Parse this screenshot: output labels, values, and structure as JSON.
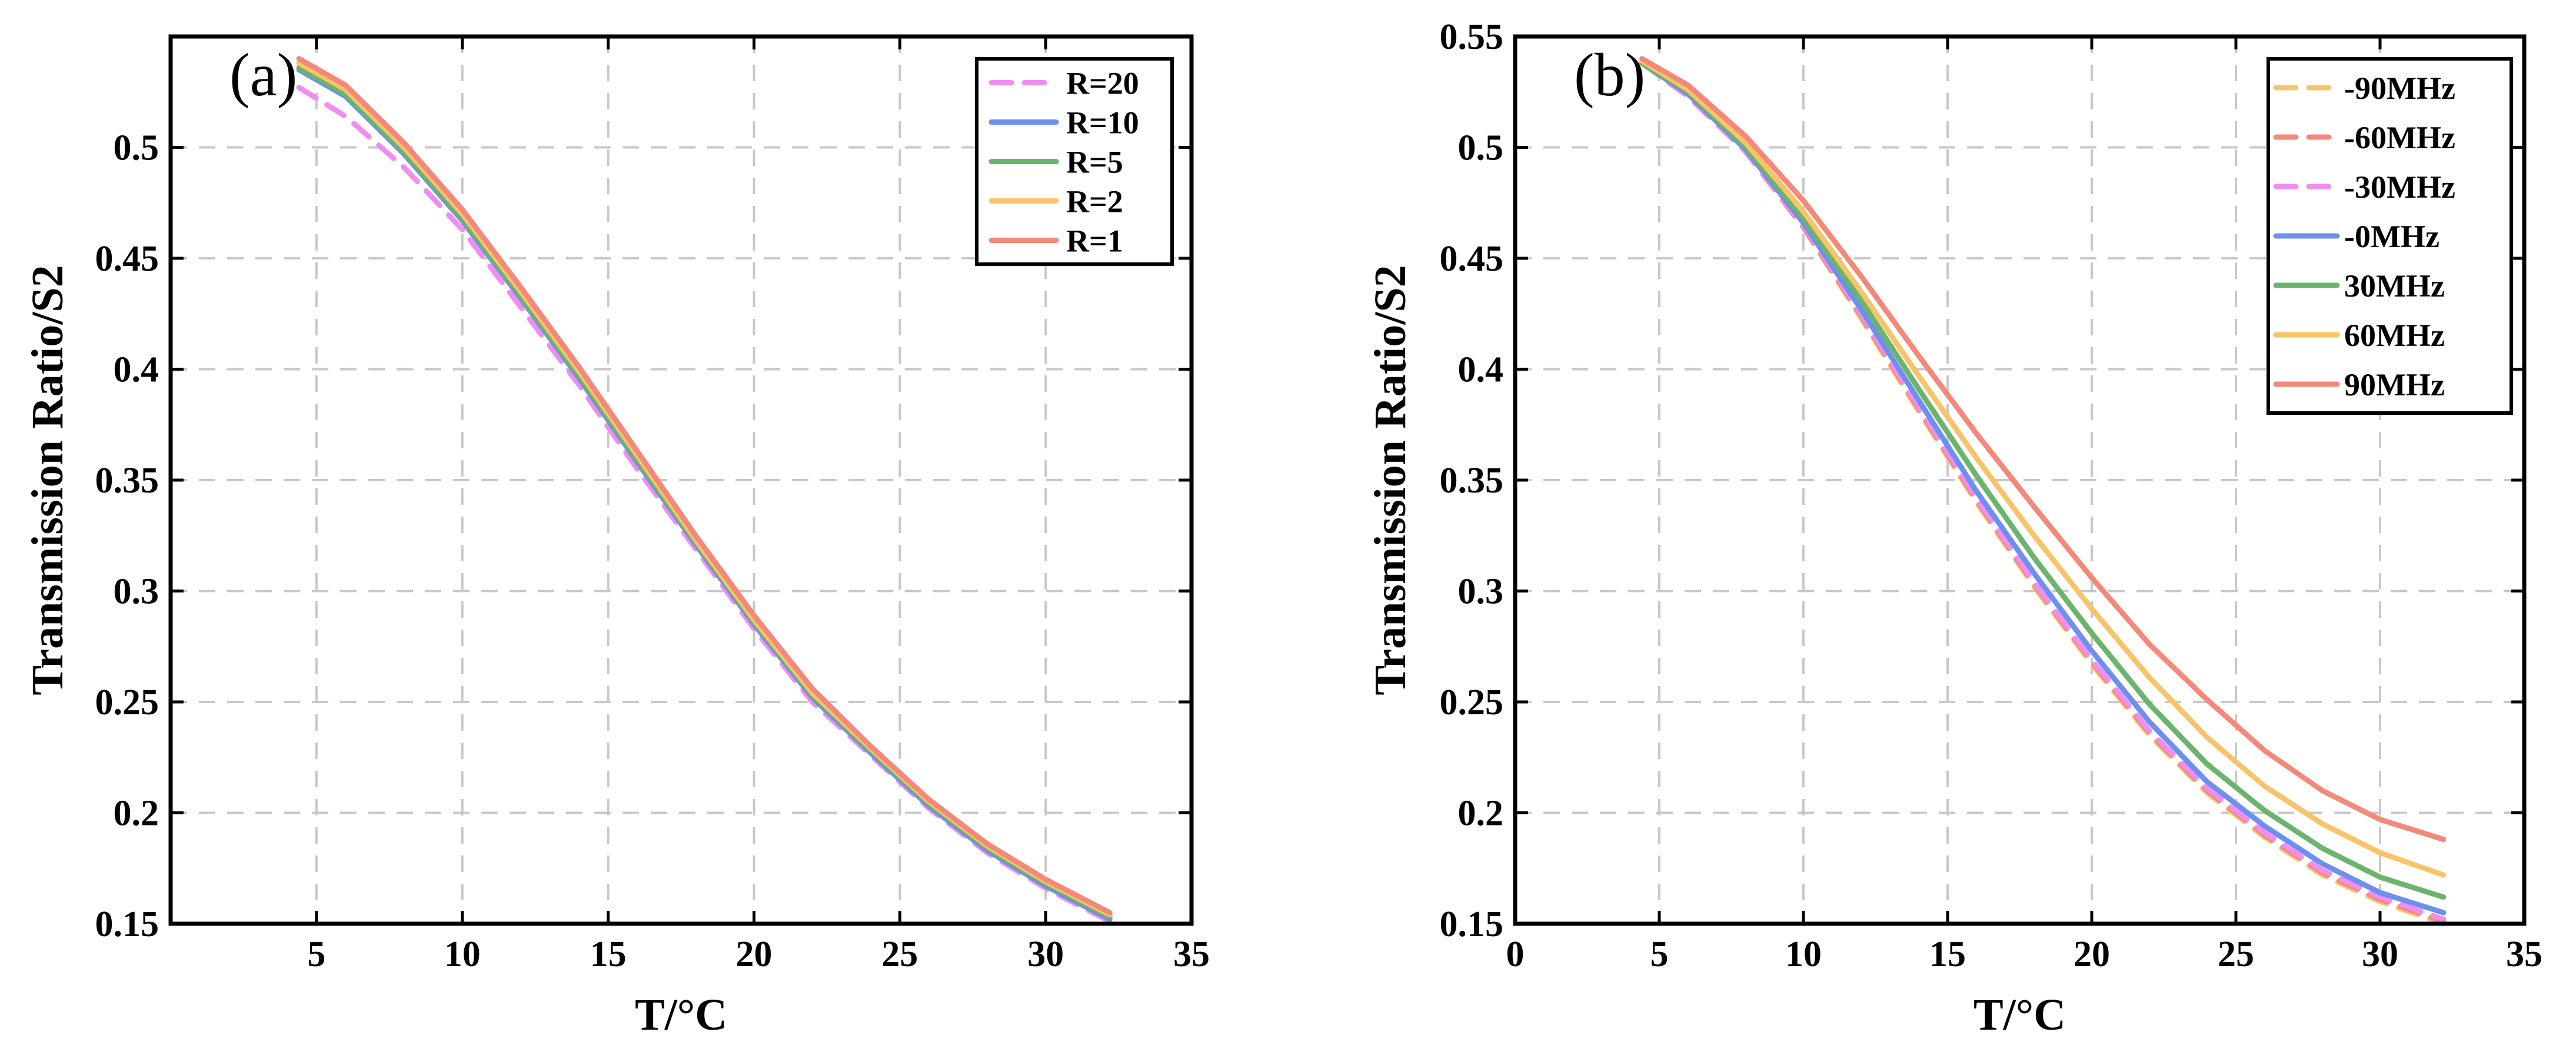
{
  "chart_data": [
    {
      "type": "line",
      "panel_label": "(a)",
      "xlabel": "T/°C",
      "ylabel": "Transmission Ratio/S2",
      "xlim": [
        0,
        35
      ],
      "ylim": [
        0.15,
        0.55
      ],
      "xticks": [
        5,
        10,
        15,
        20,
        25,
        30,
        35
      ],
      "xtick_labels": [
        "5",
        "10",
        "15",
        "20",
        "25",
        "30",
        "35"
      ],
      "yticks": [
        0.15,
        0.2,
        0.25,
        0.3,
        0.35,
        0.4,
        0.45,
        0.5
      ],
      "ytick_labels": [
        "0.15",
        "0.2",
        "0.25",
        "0.3",
        "0.35",
        "0.4",
        "0.45",
        "0.5"
      ],
      "grid": true,
      "legend_position": "top-right",
      "series": [
        {
          "name": "R=20",
          "color": "#f08ef0",
          "dash": true,
          "x": [
            4.4,
            6,
            8,
            10,
            12,
            14,
            16,
            18,
            20,
            22,
            24,
            26,
            28,
            30,
            32.2
          ],
          "y": [
            0.527,
            0.514,
            0.491,
            0.463,
            0.428,
            0.393,
            0.355,
            0.319,
            0.283,
            0.25,
            0.226,
            0.202,
            0.182,
            0.166,
            0.151
          ]
        },
        {
          "name": "R=10",
          "color": "#6d8ff0",
          "dash": false,
          "x": [
            4.4,
            6,
            8,
            10,
            12,
            14,
            16,
            18,
            20,
            22,
            24,
            26,
            28,
            30,
            32.2
          ],
          "y": [
            0.535,
            0.523,
            0.497,
            0.467,
            0.432,
            0.396,
            0.358,
            0.321,
            0.285,
            0.252,
            0.227,
            0.203,
            0.183,
            0.167,
            0.152
          ]
        },
        {
          "name": "R=5",
          "color": "#6ab46c",
          "dash": false,
          "x": [
            4.4,
            6,
            8,
            10,
            12,
            14,
            16,
            18,
            20,
            22,
            24,
            26,
            28,
            30,
            32.2
          ],
          "y": [
            0.536,
            0.524,
            0.498,
            0.468,
            0.433,
            0.397,
            0.359,
            0.322,
            0.286,
            0.253,
            0.228,
            0.204,
            0.184,
            0.168,
            0.153
          ]
        },
        {
          "name": "R=2",
          "color": "#f7c46a",
          "dash": false,
          "x": [
            4.4,
            6,
            8,
            10,
            12,
            14,
            16,
            18,
            20,
            22,
            24,
            26,
            28,
            30,
            32.2
          ],
          "y": [
            0.538,
            0.526,
            0.5,
            0.47,
            0.435,
            0.399,
            0.361,
            0.323,
            0.287,
            0.254,
            0.229,
            0.205,
            0.185,
            0.169,
            0.154
          ]
        },
        {
          "name": "R=1",
          "color": "#f4887a",
          "dash": false,
          "x": [
            4.4,
            6,
            8,
            10,
            12,
            14,
            16,
            18,
            20,
            22,
            24,
            26,
            28,
            30,
            32.2
          ],
          "y": [
            0.54,
            0.528,
            0.502,
            0.472,
            0.437,
            0.401,
            0.363,
            0.325,
            0.289,
            0.256,
            0.23,
            0.206,
            0.186,
            0.17,
            0.155
          ]
        }
      ]
    },
    {
      "type": "line",
      "panel_label": "(b)",
      "xlabel": "T/°C",
      "ylabel": "Transmission Ratio/S2",
      "xlim": [
        0,
        35
      ],
      "ylim": [
        0.15,
        0.55
      ],
      "xticks": [
        0,
        5,
        10,
        15,
        20,
        25,
        30,
        35
      ],
      "xtick_labels": [
        "0",
        "5",
        "10",
        "15",
        "20",
        "25",
        "30",
        "35"
      ],
      "yticks": [
        0.15,
        0.2,
        0.25,
        0.3,
        0.35,
        0.4,
        0.45,
        0.5,
        0.55
      ],
      "ytick_labels": [
        "0.15",
        "0.2",
        "0.25",
        "0.3",
        "0.35",
        "0.4",
        "0.45",
        "0.5",
        "0.55"
      ],
      "grid": true,
      "legend_position": "top-right",
      "series": [
        {
          "name": "-90MHz",
          "color": "#f7c46a",
          "dash": true,
          "x": [
            4.4,
            6,
            8,
            10,
            12,
            14,
            16,
            18,
            20,
            22,
            24,
            26,
            28,
            30,
            32.2
          ],
          "y": [
            0.538,
            0.523,
            0.498,
            0.464,
            0.423,
            0.381,
            0.34,
            0.302,
            0.267,
            0.235,
            0.209,
            0.189,
            0.172,
            0.16,
            0.15
          ]
        },
        {
          "name": "-60MHz",
          "color": "#f4887a",
          "dash": true,
          "x": [
            4.4,
            6,
            8,
            10,
            12,
            14,
            16,
            18,
            20,
            22,
            24,
            26,
            28,
            30,
            32.2
          ],
          "y": [
            0.538,
            0.523,
            0.498,
            0.464,
            0.424,
            0.382,
            0.341,
            0.303,
            0.268,
            0.236,
            0.21,
            0.19,
            0.173,
            0.161,
            0.151
          ]
        },
        {
          "name": "-30MHz",
          "color": "#f08ef0",
          "dash": true,
          "x": [
            4.4,
            6,
            8,
            10,
            12,
            14,
            16,
            18,
            20,
            22,
            24,
            26,
            28,
            30,
            32.2
          ],
          "y": [
            0.538,
            0.523,
            0.498,
            0.465,
            0.425,
            0.383,
            0.342,
            0.304,
            0.269,
            0.237,
            0.211,
            0.191,
            0.174,
            0.162,
            0.152
          ]
        },
        {
          "name": "-0MHz",
          "color": "#6d8ff0",
          "dash": false,
          "x": [
            4.4,
            6,
            8,
            10,
            12,
            14,
            16,
            18,
            20,
            22,
            24,
            26,
            28,
            30,
            32.2
          ],
          "y": [
            0.538,
            0.524,
            0.499,
            0.466,
            0.427,
            0.386,
            0.345,
            0.308,
            0.273,
            0.241,
            0.214,
            0.194,
            0.177,
            0.164,
            0.155
          ]
        },
        {
          "name": "30MHz",
          "color": "#6ab46c",
          "dash": false,
          "x": [
            4.4,
            6,
            8,
            10,
            12,
            14,
            16,
            18,
            20,
            22,
            24,
            26,
            28,
            30,
            32.2
          ],
          "y": [
            0.538,
            0.525,
            0.5,
            0.468,
            0.431,
            0.391,
            0.352,
            0.315,
            0.281,
            0.249,
            0.222,
            0.201,
            0.184,
            0.171,
            0.162
          ]
        },
        {
          "name": "60MHz",
          "color": "#f7c46a",
          "dash": false,
          "x": [
            4.4,
            6,
            8,
            10,
            12,
            14,
            16,
            18,
            20,
            22,
            24,
            26,
            28,
            30,
            32.2
          ],
          "y": [
            0.539,
            0.526,
            0.502,
            0.471,
            0.435,
            0.397,
            0.36,
            0.325,
            0.292,
            0.261,
            0.234,
            0.212,
            0.195,
            0.182,
            0.172
          ]
        },
        {
          "name": "90MHz",
          "color": "#f4887a",
          "dash": false,
          "x": [
            4.4,
            6,
            8,
            10,
            12,
            14,
            16,
            18,
            20,
            22,
            24,
            26,
            28,
            30,
            32.2
          ],
          "y": [
            0.54,
            0.528,
            0.505,
            0.476,
            0.442,
            0.406,
            0.371,
            0.338,
            0.306,
            0.276,
            0.251,
            0.228,
            0.21,
            0.197,
            0.188
          ]
        }
      ]
    }
  ]
}
